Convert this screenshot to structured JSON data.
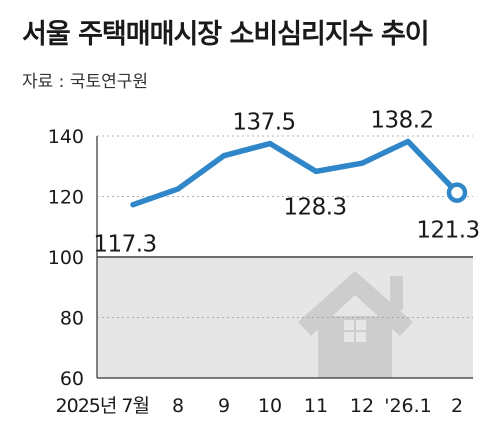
{
  "header": {
    "title": "서울 주택매매시장 소비심리지수 추이",
    "source": "자료 : 국토연구원"
  },
  "colors": {
    "line": "#2f86c8",
    "band": "#e6e6e6",
    "house": "#cdcdcd",
    "grid": "#9a9a9a"
  },
  "icons": [
    "house-icon"
  ],
  "chart_data": {
    "type": "line",
    "title": "서울 주택매매시장 소비심리지수 추이",
    "categories": [
      "2025년 7월",
      "8",
      "9",
      "10",
      "11",
      "12",
      "'26.1",
      "2"
    ],
    "series": [
      {
        "values": [
          117.3,
          122.5,
          133.5,
          137.5,
          128.3,
          131.0,
          138.2,
          121.3
        ]
      }
    ],
    "data_labels": [
      "117.3",
      "",
      "",
      "137.5",
      "128.3",
      "",
      "138.2",
      "121.3"
    ],
    "yticks": [
      "60",
      "80",
      "100",
      "120",
      "140"
    ],
    "ylim": [
      60,
      145
    ],
    "shaded_below": 100,
    "grid": true
  }
}
